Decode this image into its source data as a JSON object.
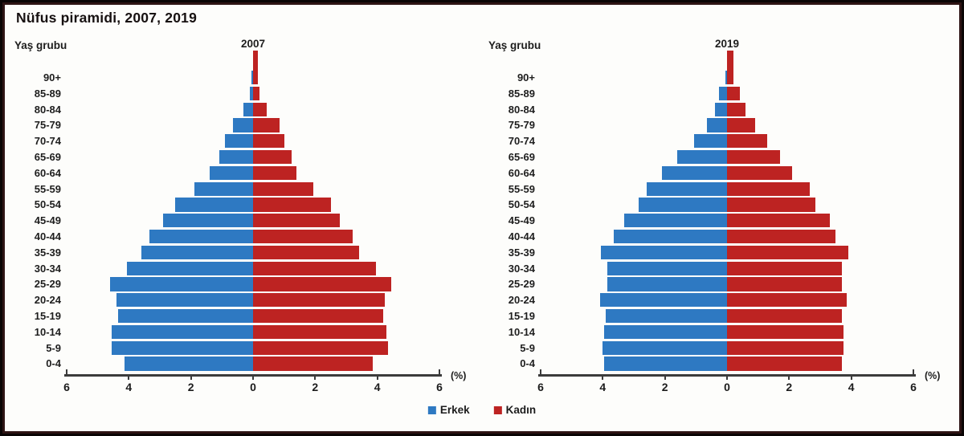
{
  "page_title": "Nüfus piramidi, 2007, 2019",
  "axis": {
    "y_label": "Yaş grubu",
    "unit_label": "(%)",
    "ticks": [
      "6",
      "4",
      "2",
      "0",
      "2",
      "4",
      "6"
    ]
  },
  "legend": {
    "male": "Erkek",
    "female": "Kadın"
  },
  "colors": {
    "male": "#2e79c2",
    "female": "#bd2322",
    "axis": "#3b3b3b",
    "frame_outer": "#0a0505",
    "frame_inner": "#2e1414",
    "background": "#fdfdfb"
  },
  "chart_data": [
    {
      "type": "bar",
      "subtype": "population-pyramid",
      "title": "2007",
      "xlabel": "(%)",
      "ylabel": "Yaş grubu",
      "xlim": [
        -6,
        6
      ],
      "grid": false,
      "legend_position": "bottom-center",
      "categories": [
        "90+",
        "85-89",
        "80-84",
        "75-79",
        "70-74",
        "65-69",
        "60-64",
        "55-59",
        "50-54",
        "45-49",
        "40-44",
        "35-39",
        "30-34",
        "25-29",
        "20-24",
        "15-19",
        "10-14",
        "5-9",
        "0-4"
      ],
      "series": [
        {
          "name": "Erkek",
          "color": "#2e79c2",
          "values": [
            0.05,
            0.1,
            0.3,
            0.65,
            0.9,
            1.1,
            1.4,
            1.9,
            2.5,
            2.9,
            3.35,
            3.6,
            4.05,
            4.6,
            4.4,
            4.35,
            4.55,
            4.55,
            4.15
          ]
        },
        {
          "name": "Kadın",
          "color": "#bd2322",
          "values": [
            0.15,
            0.2,
            0.45,
            0.85,
            1.0,
            1.25,
            1.4,
            1.95,
            2.5,
            2.8,
            3.2,
            3.4,
            3.95,
            4.45,
            4.25,
            4.2,
            4.3,
            4.35,
            3.85
          ]
        }
      ]
    },
    {
      "type": "bar",
      "subtype": "population-pyramid",
      "title": "2019",
      "xlabel": "(%)",
      "ylabel": "Yaş grubu",
      "xlim": [
        -6,
        6
      ],
      "grid": false,
      "legend_position": "bottom-center",
      "categories": [
        "90+",
        "85-89",
        "80-84",
        "75-79",
        "70-74",
        "65-69",
        "60-64",
        "55-59",
        "50-54",
        "45-49",
        "40-44",
        "35-39",
        "30-34",
        "25-29",
        "20-24",
        "15-19",
        "10-14",
        "5-9",
        "0-4"
      ],
      "series": [
        {
          "name": "Erkek",
          "color": "#2e79c2",
          "values": [
            0.05,
            0.25,
            0.4,
            0.65,
            1.05,
            1.6,
            2.1,
            2.6,
            2.85,
            3.3,
            3.65,
            4.05,
            3.85,
            3.85,
            4.1,
            3.9,
            3.95,
            4.0,
            3.95
          ]
        },
        {
          "name": "Kadın",
          "color": "#bd2322",
          "values": [
            0.2,
            0.4,
            0.6,
            0.9,
            1.3,
            1.7,
            2.1,
            2.65,
            2.85,
            3.3,
            3.5,
            3.9,
            3.7,
            3.7,
            3.85,
            3.7,
            3.75,
            3.75,
            3.7
          ]
        }
      ]
    }
  ]
}
